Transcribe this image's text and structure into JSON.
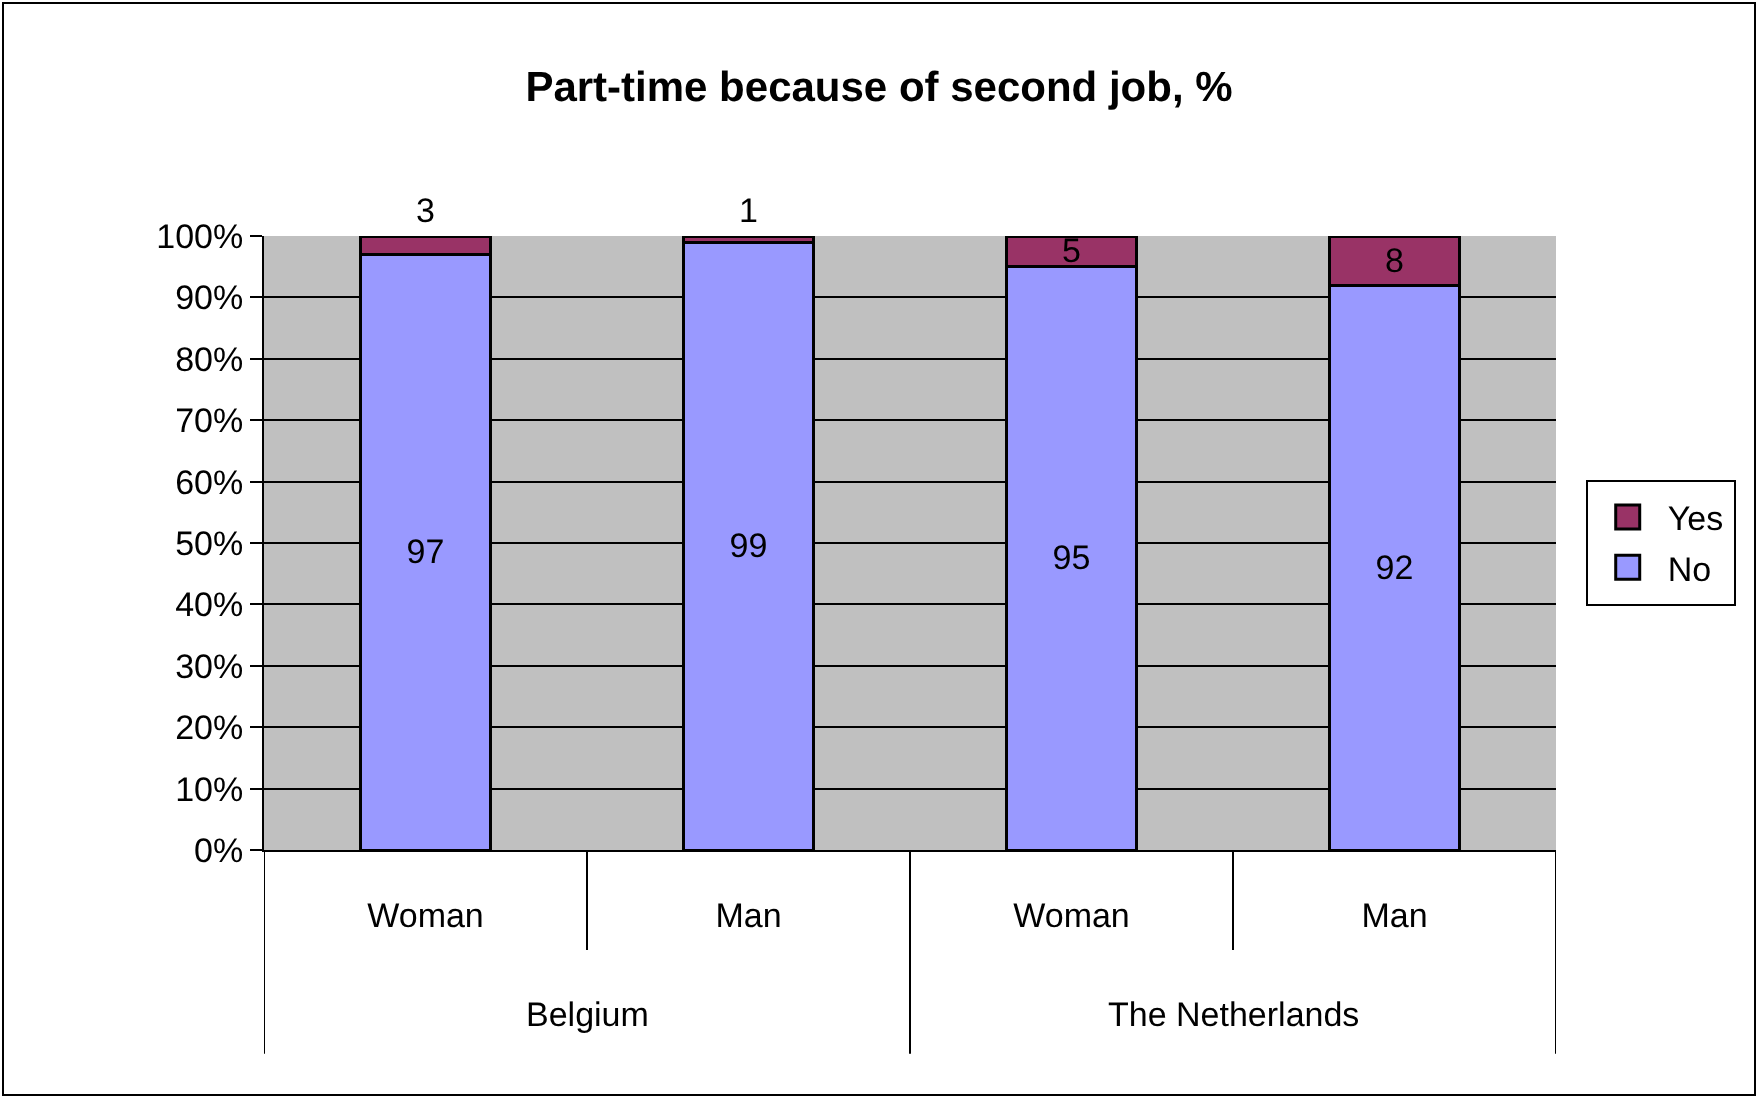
{
  "chart_data": {
    "type": "bar",
    "title": "Part-time because of second job, %",
    "categories": [
      "Woman",
      "Man",
      "Woman",
      "Man"
    ],
    "annotations": [
      "Belgium",
      "The Netherlands"
    ],
    "stacked": true,
    "series": [
      {
        "name": "No",
        "color": "#9999ff",
        "values": [
          97,
          99,
          95,
          92
        ]
      },
      {
        "name": "Yes",
        "color": "#993366",
        "values": [
          3,
          1,
          5,
          8
        ]
      }
    ],
    "ylim": [
      0,
      100
    ],
    "yticks": [
      {
        "value": 0,
        "label": "0%"
      },
      {
        "value": 10,
        "label": "10%"
      },
      {
        "value": 20,
        "label": "20%"
      },
      {
        "value": 30,
        "label": "30%"
      },
      {
        "value": 40,
        "label": "40%"
      },
      {
        "value": 50,
        "label": "50%"
      },
      {
        "value": 60,
        "label": "60%"
      },
      {
        "value": 70,
        "label": "70%"
      },
      {
        "value": 80,
        "label": "80%"
      },
      {
        "value": 90,
        "label": "90%"
      },
      {
        "value": 100,
        "label": "100%"
      }
    ],
    "grid": "y",
    "legend": "right",
    "data_labels": true
  }
}
